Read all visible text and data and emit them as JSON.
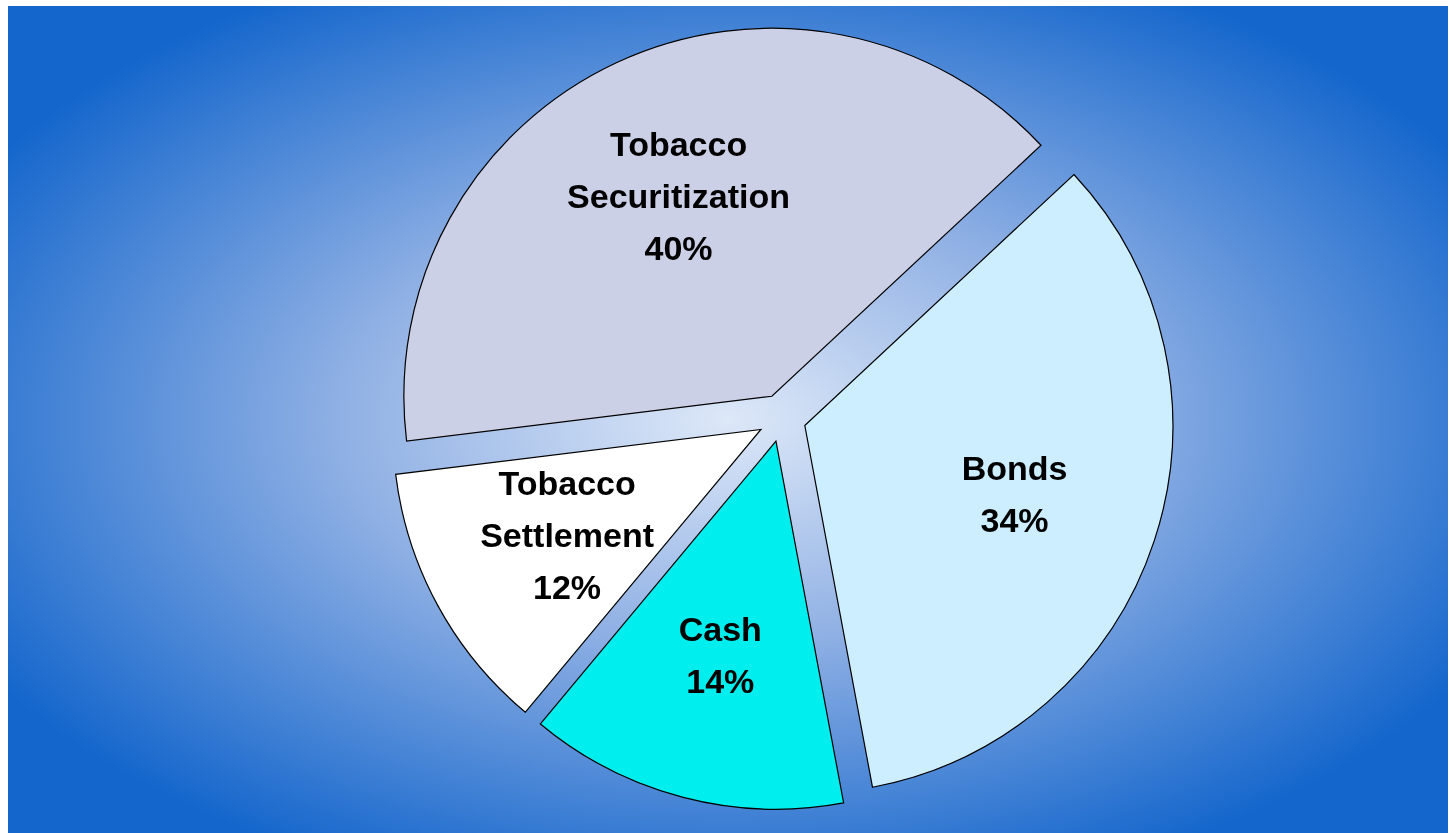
{
  "chart_data": {
    "type": "pie",
    "categories": [
      "Bonds",
      "Cash",
      "Tobacco Settlement",
      "Tobacco Securitization"
    ],
    "values": [
      34,
      14,
      12,
      40
    ],
    "value_labels": [
      "34%",
      "14%",
      "12%",
      "40%"
    ],
    "colors": [
      "#cceeff",
      "#00eeee",
      "#ffffff",
      "#ccd0e6"
    ]
  }
}
